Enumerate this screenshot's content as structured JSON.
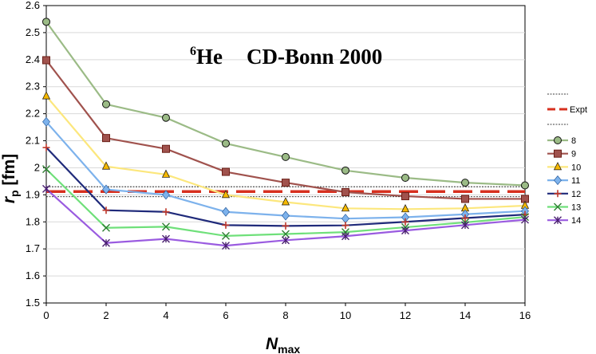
{
  "chart_data": {
    "type": "line",
    "title": {
      "isotope_mass": "6",
      "isotope_symbol": "He",
      "interaction": "CD-Bonn 2000"
    },
    "xlabel": {
      "main": "N",
      "sub": "max"
    },
    "ylabel": {
      "main": "r",
      "sub": "p",
      "unit": " [fm]"
    },
    "xlim": [
      0,
      16
    ],
    "ylim": [
      1.5,
      2.6
    ],
    "x": [
      0,
      2,
      4,
      6,
      8,
      10,
      12,
      14,
      16
    ],
    "xticks": [
      "0",
      "2",
      "4",
      "6",
      "8",
      "10",
      "12",
      "14",
      "16"
    ],
    "yticks": [
      "1.5",
      "1.6",
      "1.7",
      "1.8",
      "1.9",
      "2",
      "2.1",
      "2.2",
      "2.3",
      "2.4",
      "2.5",
      "2.6"
    ],
    "ytick_values": [
      1.5,
      1.6,
      1.7,
      1.8,
      1.9,
      2.0,
      2.1,
      2.2,
      2.3,
      2.4,
      2.5,
      2.6
    ],
    "expt": {
      "label": "Expt",
      "value": 1.912,
      "band": [
        1.893,
        1.93
      ],
      "color": "#d7301f"
    },
    "series": [
      {
        "name": "8",
        "color": "#9bbb86",
        "marker": "circle",
        "values": [
          2.54,
          2.235,
          2.185,
          2.09,
          2.04,
          1.99,
          1.963,
          1.945,
          1.935
        ]
      },
      {
        "name": "9",
        "color": "#a0524d",
        "marker": "square",
        "values": [
          2.398,
          2.11,
          2.07,
          1.985,
          1.945,
          1.91,
          1.895,
          1.885,
          1.885
        ]
      },
      {
        "name": "10",
        "color": "#fce77d",
        "marker": "triangle",
        "values": [
          2.265,
          2.005,
          1.975,
          1.9,
          1.873,
          1.85,
          1.847,
          1.85,
          1.86
        ]
      },
      {
        "name": "11",
        "color": "#7db2ec",
        "marker": "diamond",
        "values": [
          2.17,
          1.92,
          1.9,
          1.837,
          1.823,
          1.812,
          1.817,
          1.828,
          1.84
        ]
      },
      {
        "name": "12",
        "color": "#1f2a7a",
        "marker": "plus",
        "values": [
          2.075,
          1.843,
          1.837,
          1.788,
          1.785,
          1.787,
          1.8,
          1.814,
          1.827
        ]
      },
      {
        "name": "13",
        "color": "#6fe07a",
        "marker": "x",
        "values": [
          1.995,
          1.778,
          1.782,
          1.748,
          1.755,
          1.762,
          1.78,
          1.798,
          1.818
        ]
      },
      {
        "name": "14",
        "color": "#9a5be0",
        "marker": "star",
        "values": [
          1.922,
          1.722,
          1.737,
          1.712,
          1.732,
          1.747,
          1.768,
          1.788,
          1.808
        ]
      }
    ]
  }
}
